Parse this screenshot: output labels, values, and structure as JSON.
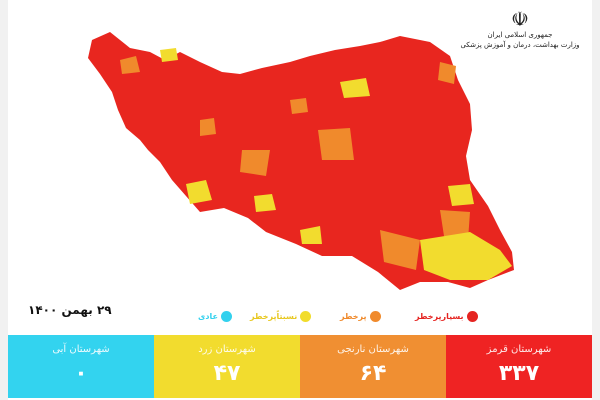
{
  "header": {
    "emblem": "☫",
    "logo_line1": "جمهوری اسلامی ایران",
    "logo_line2": "وزارت بهداشت، درمان و آموزش پزشکی"
  },
  "date": "۲۹ بهمن ۱۴۰۰",
  "legend": [
    {
      "label": "بسیارپرخطر",
      "color": "#e52421"
    },
    {
      "label": "پرخطر",
      "color": "#f08a2c"
    },
    {
      "label": "نسبتاًپرخطر",
      "color": "#f1dc2b"
    },
    {
      "label": "عادی",
      "color": "#33d1ee"
    }
  ],
  "boxes": [
    {
      "label": "شهرستان آبی",
      "value": "۰",
      "color": "#33d3ef"
    },
    {
      "label": "شهرستان زرد",
      "value": "۴۷",
      "color": "#f2dc2e"
    },
    {
      "label": "شهرستان نارنجی",
      "value": "۶۴",
      "color": "#f08f32"
    },
    {
      "label": "شهرستان قرمز",
      "value": "۳۳۷",
      "color": "#ef2323"
    }
  ]
}
